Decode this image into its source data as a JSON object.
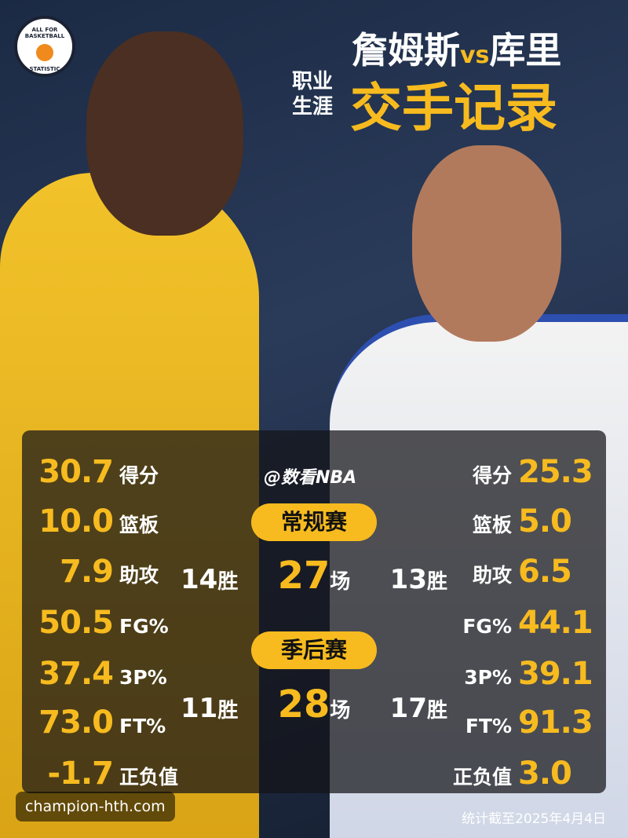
{
  "logo": {
    "top": "ALL FOR BASKETBALL",
    "bottom": "STATISTIC"
  },
  "title": {
    "left_name": "詹姆斯",
    "vs": "vs",
    "right_name": "库里",
    "sub_1": "职业",
    "sub_2": "生涯",
    "main": "交手记录"
  },
  "left_stats": [
    {
      "value": "30.7",
      "label": "得分"
    },
    {
      "value": "10.0",
      "label": "篮板"
    },
    {
      "value": "7.9",
      "label": "助攻"
    },
    {
      "value": "50.5",
      "label": "FG%"
    },
    {
      "value": "37.4",
      "label": "3P%"
    },
    {
      "value": "73.0",
      "label": "FT%"
    },
    {
      "value": "-1.7",
      "label": "正负值"
    }
  ],
  "right_stats": [
    {
      "label": "得分",
      "value": "25.3"
    },
    {
      "label": "篮板",
      "value": "5.0"
    },
    {
      "label": "助攻",
      "value": "6.5"
    },
    {
      "label": "FG%",
      "value": "44.1"
    },
    {
      "label": "3P%",
      "value": "39.1"
    },
    {
      "label": "FT%",
      "value": "91.3"
    },
    {
      "label": "正负值",
      "value": "3.0"
    }
  ],
  "source": "@数看NBA",
  "regular": {
    "label": "常规赛",
    "left_wins": "14",
    "win_unit": "胜",
    "games": "27",
    "game_unit": "场",
    "right_wins": "13"
  },
  "playoffs": {
    "label": "季后赛",
    "left_wins": "11",
    "win_unit": "胜",
    "games": "28",
    "game_unit": "场",
    "right_wins": "17"
  },
  "watermark": "champion-hth.com",
  "footnote": "统计截至2025年4月4日"
}
